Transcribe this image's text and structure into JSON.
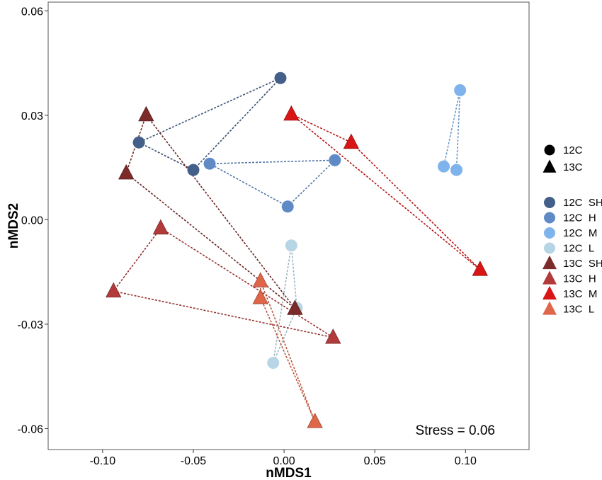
{
  "chart_data": {
    "type": "scatter",
    "title": "",
    "xlabel": "nMDS1",
    "ylabel": "nMDS2",
    "xlim": [
      -0.13,
      0.135
    ],
    "ylim": [
      -0.066,
      0.0625
    ],
    "x_ticks": [
      -0.1,
      -0.05,
      0.0,
      0.05,
      0.1
    ],
    "x_tick_labels": [
      "-0.10",
      "-0.05",
      "0.00",
      "0.05",
      "0.10"
    ],
    "y_ticks": [
      -0.06,
      -0.03,
      0.0,
      0.03,
      0.06
    ],
    "y_tick_labels": [
      "-0.06",
      "-0.03",
      "0.00",
      "0.03",
      "0.06"
    ],
    "grid": false,
    "legend_position": "right",
    "annotation": "Stress = 0.06",
    "shape_legend": [
      {
        "label": "12C",
        "shape": "circle"
      },
      {
        "label": "13C",
        "shape": "triangle"
      }
    ],
    "series": [
      {
        "name": "12C  SH",
        "shape": "circle",
        "color": "#44608a",
        "points": [
          {
            "x": -0.002,
            "y": 0.0407
          },
          {
            "x": -0.08,
            "y": 0.0222
          },
          {
            "x": -0.05,
            "y": 0.0143
          }
        ]
      },
      {
        "name": "12C  H",
        "shape": "circle",
        "color": "#5f8ac6",
        "points": [
          {
            "x": -0.041,
            "y": 0.0161
          },
          {
            "x": 0.028,
            "y": 0.0171
          },
          {
            "x": 0.002,
            "y": 0.0038
          }
        ]
      },
      {
        "name": "12C  M",
        "shape": "circle",
        "color": "#7fb3ec",
        "points": [
          {
            "x": 0.097,
            "y": 0.0372
          },
          {
            "x": 0.088,
            "y": 0.0153
          },
          {
            "x": 0.095,
            "y": 0.0143
          }
        ]
      },
      {
        "name": "12C  L",
        "shape": "circle",
        "color": "#b7d5e4",
        "points": [
          {
            "x": 0.004,
            "y": -0.0074
          },
          {
            "x": 0.007,
            "y": -0.0253
          },
          {
            "x": -0.006,
            "y": -0.0411
          }
        ]
      },
      {
        "name": "13C  SH",
        "shape": "triangle",
        "color": "#7d2a2a",
        "points": [
          {
            "x": -0.076,
            "y": 0.0301
          },
          {
            "x": -0.087,
            "y": 0.0134
          },
          {
            "x": 0.006,
            "y": -0.0255
          }
        ]
      },
      {
        "name": "13C  H",
        "shape": "triangle",
        "color": "#b23a3a",
        "points": [
          {
            "x": -0.068,
            "y": -0.0024
          },
          {
            "x": -0.094,
            "y": -0.0205
          },
          {
            "x": 0.027,
            "y": -0.0338
          }
        ]
      },
      {
        "name": "13C  M",
        "shape": "triangle",
        "color": "#d91515",
        "points": [
          {
            "x": 0.004,
            "y": 0.0303
          },
          {
            "x": 0.037,
            "y": 0.0222
          },
          {
            "x": 0.108,
            "y": -0.0143
          }
        ]
      },
      {
        "name": "13C  L",
        "shape": "triangle",
        "color": "#e0664a",
        "points": [
          {
            "x": -0.013,
            "y": -0.0176
          },
          {
            "x": -0.013,
            "y": -0.0224
          },
          {
            "x": 0.017,
            "y": -0.058
          }
        ]
      }
    ]
  }
}
